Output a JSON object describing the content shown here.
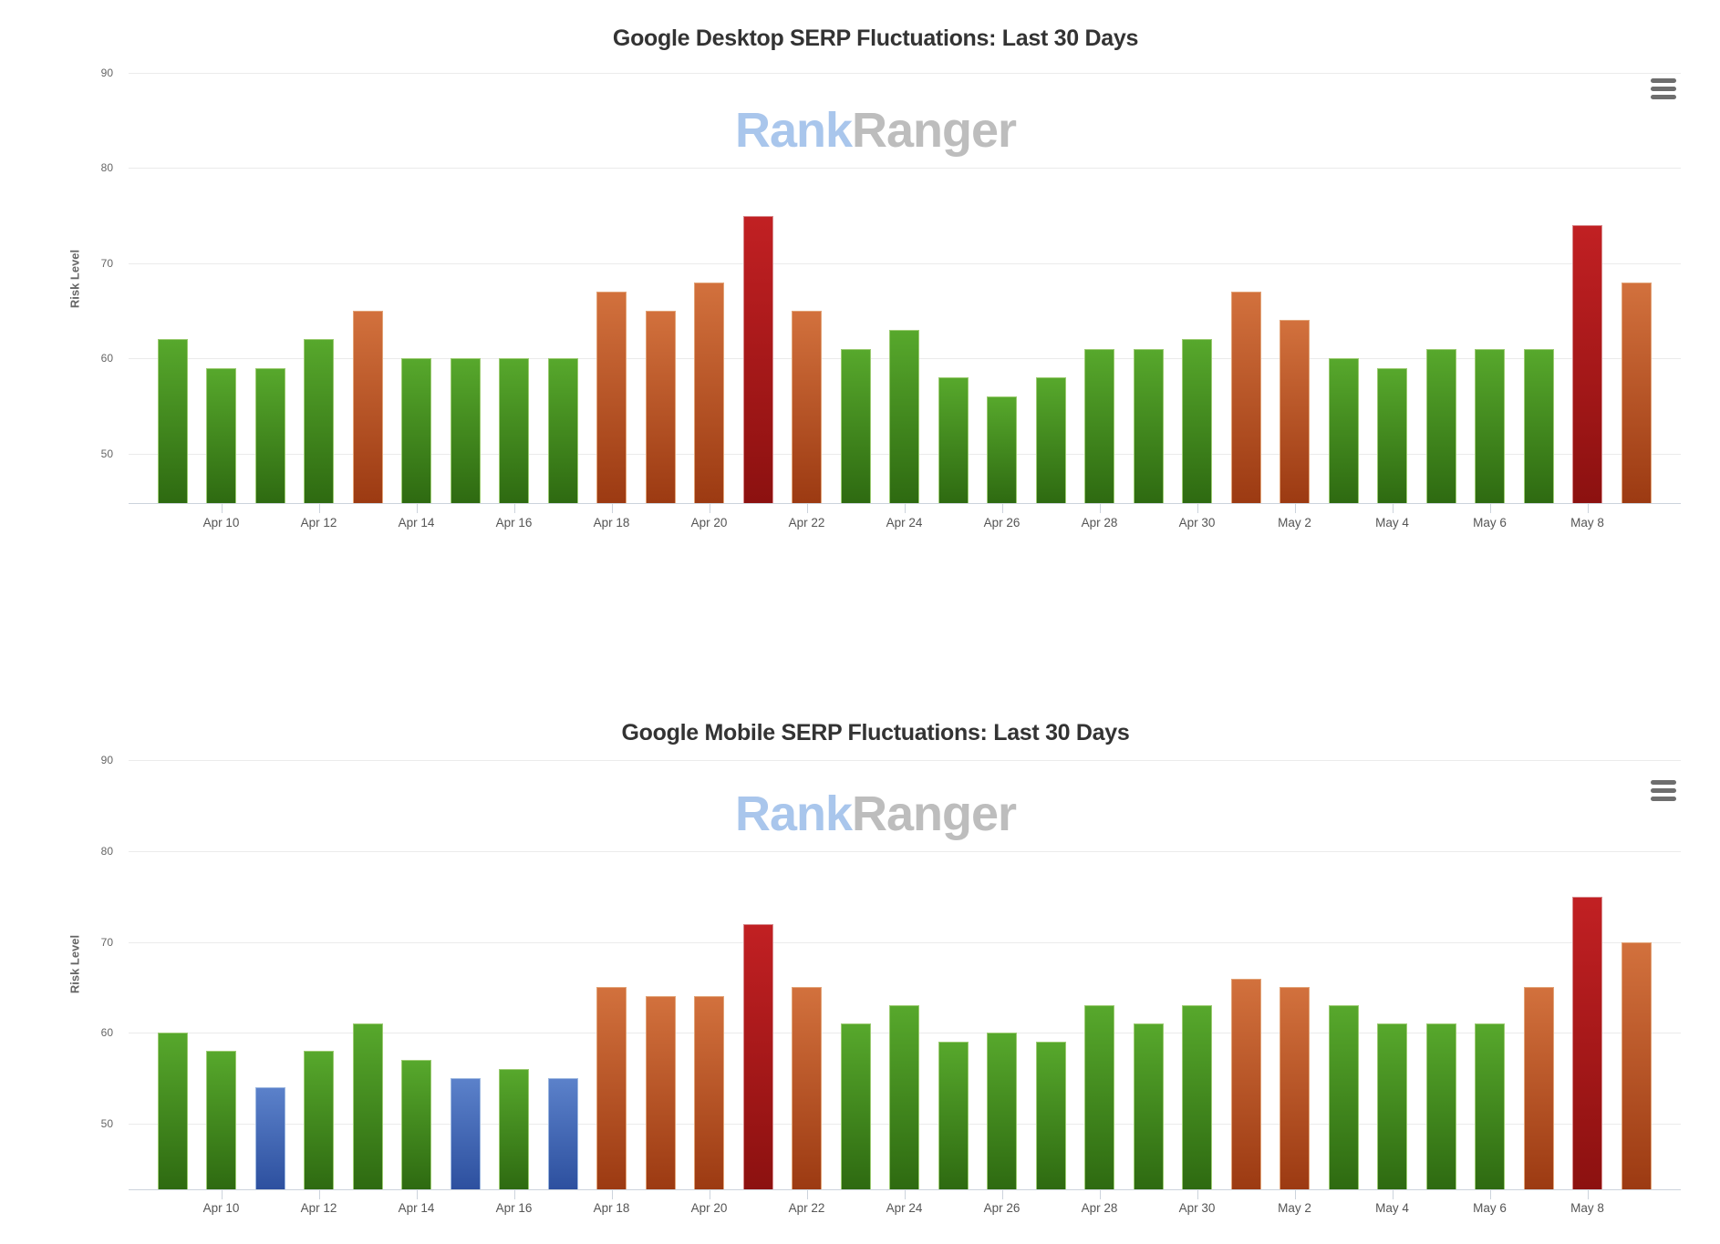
{
  "page": {
    "background": "#ffffff"
  },
  "watermark": {
    "part1": "Rank",
    "part2": "Ranger",
    "color1": "#a9c6ec",
    "color2": "#bdbdbd"
  },
  "menu_icon": {
    "name": "hamburger-menu",
    "color": "#6e6e6e"
  },
  "bar_colors": {
    "green": {
      "top": "#57a82c",
      "bottom": "#2e6a11",
      "border": "#9ccb72"
    },
    "orange": {
      "top": "#d2713d",
      "bottom": "#9c3a12",
      "border": "#e2a377"
    },
    "red": {
      "top": "#c12023",
      "bottom": "#8c1110",
      "border": "#d88a8c"
    },
    "blue": {
      "top": "#5b81ca",
      "bottom": "#2d509f",
      "border": "#9db8e0"
    }
  },
  "chart_data": [
    {
      "type": "bar",
      "title": "Google Desktop SERP Fluctuations: Last 30 Days",
      "xlabel": "",
      "ylabel": "Risk Level",
      "categories": [
        "Apr 9",
        "Apr 10",
        "Apr 11",
        "Apr 12",
        "Apr 13",
        "Apr 14",
        "Apr 15",
        "Apr 16",
        "Apr 17",
        "Apr 18",
        "Apr 19",
        "Apr 20",
        "Apr 21",
        "Apr 22",
        "Apr 23",
        "Apr 24",
        "Apr 25",
        "Apr 26",
        "Apr 27",
        "Apr 28",
        "Apr 29",
        "Apr 30",
        "May 1",
        "May 2",
        "May 3",
        "May 4",
        "May 5",
        "May 6",
        "May 7",
        "May 8",
        "May 9"
      ],
      "values": [
        62,
        59,
        59,
        62,
        65,
        60,
        60,
        60,
        60,
        67,
        65,
        68,
        75,
        65,
        61,
        63,
        58,
        56,
        58,
        61,
        61,
        62,
        67,
        64,
        60,
        59,
        61,
        61,
        61,
        74,
        68
      ],
      "bar_color_names": [
        "green",
        "green",
        "green",
        "green",
        "orange",
        "green",
        "green",
        "green",
        "green",
        "orange",
        "orange",
        "orange",
        "red",
        "orange",
        "green",
        "green",
        "green",
        "green",
        "green",
        "green",
        "green",
        "green",
        "orange",
        "orange",
        "green",
        "green",
        "green",
        "green",
        "green",
        "red",
        "orange"
      ],
      "x_tick_label_indices": [
        1,
        3,
        5,
        7,
        9,
        11,
        13,
        15,
        17,
        19,
        21,
        23,
        25,
        27,
        29
      ],
      "yticks": [
        50,
        60,
        70,
        80,
        90
      ],
      "ylim": [
        44.8,
        91.9
      ],
      "grid": true,
      "legend": "none"
    },
    {
      "type": "bar",
      "title": "Google Mobile SERP Fluctuations: Last 30 Days",
      "xlabel": "",
      "ylabel": "Risk Level",
      "categories": [
        "Apr 9",
        "Apr 10",
        "Apr 11",
        "Apr 12",
        "Apr 13",
        "Apr 14",
        "Apr 15",
        "Apr 16",
        "Apr 17",
        "Apr 18",
        "Apr 19",
        "Apr 20",
        "Apr 21",
        "Apr 22",
        "Apr 23",
        "Apr 24",
        "Apr 25",
        "Apr 26",
        "Apr 27",
        "Apr 28",
        "Apr 29",
        "Apr 30",
        "May 1",
        "May 2",
        "May 3",
        "May 4",
        "May 5",
        "May 6",
        "May 7",
        "May 8",
        "May 9"
      ],
      "values": [
        60,
        58,
        54,
        58,
        61,
        57,
        55,
        56,
        55,
        65,
        64,
        64,
        72,
        65,
        61,
        63,
        59,
        60,
        59,
        63,
        61,
        63,
        66,
        65,
        63,
        61,
        61,
        61,
        65,
        75,
        70
      ],
      "bar_color_names": [
        "green",
        "green",
        "blue",
        "green",
        "green",
        "green",
        "blue",
        "green",
        "blue",
        "orange",
        "orange",
        "orange",
        "red",
        "orange",
        "green",
        "green",
        "green",
        "green",
        "green",
        "green",
        "green",
        "green",
        "orange",
        "orange",
        "green",
        "green",
        "green",
        "green",
        "orange",
        "red",
        "orange"
      ],
      "x_tick_label_indices": [
        1,
        3,
        5,
        7,
        9,
        11,
        13,
        15,
        17,
        19,
        21,
        23,
        25,
        27,
        29
      ],
      "yticks": [
        50,
        60,
        70,
        80,
        90
      ],
      "ylim": [
        42.8,
        92.2
      ],
      "grid": true,
      "legend": "none"
    }
  ]
}
